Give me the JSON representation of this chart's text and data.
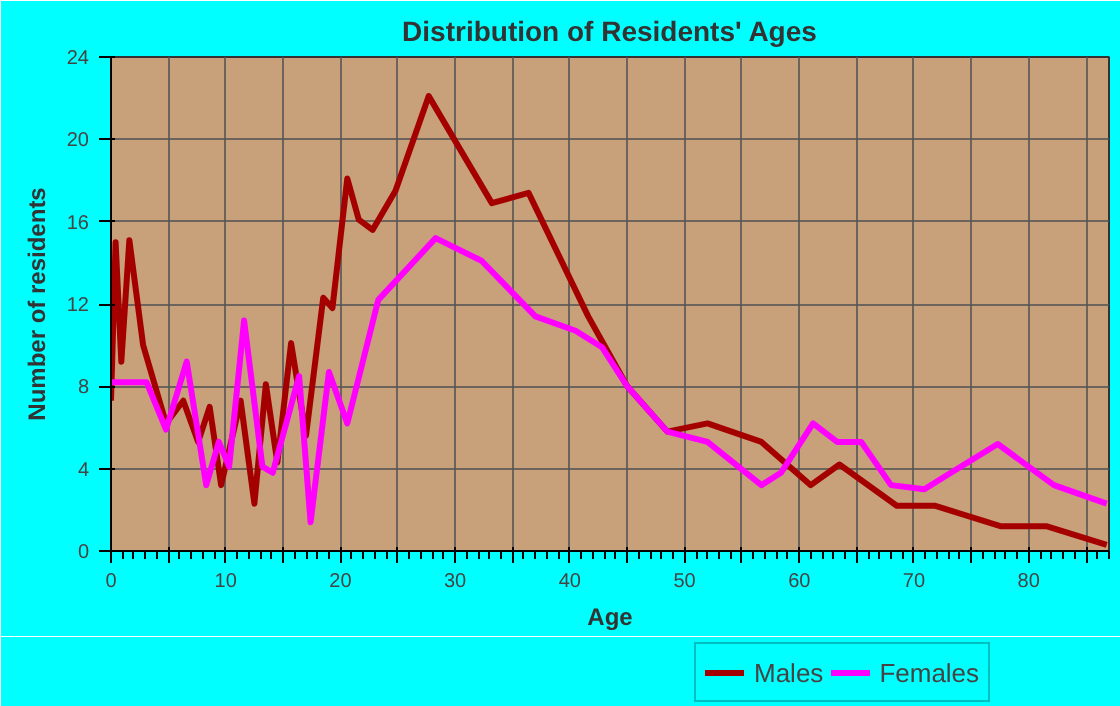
{
  "chart_data": {
    "type": "line",
    "title": "Distribution of Residents' Ages",
    "xlabel": "Age",
    "ylabel": "Number of residents",
    "xlim": [
      0,
      87
    ],
    "ylim": [
      0,
      24
    ],
    "xticks": [
      0,
      {
        "value": 5,
        "label": null
      },
      10,
      {
        "value": 15,
        "label": null
      },
      20,
      {
        "value": 25,
        "label": null
      },
      30,
      {
        "value": 35,
        "label": null
      },
      40,
      {
        "value": 45,
        "label": null
      },
      50,
      {
        "value": 55,
        "label": null
      },
      60,
      {
        "value": 65,
        "label": null
      },
      70,
      {
        "value": 75,
        "label": null
      },
      80,
      {
        "value": 85,
        "label": null
      }
    ],
    "yticks": [
      0,
      4,
      8,
      12,
      16,
      20,
      24
    ],
    "grid": true,
    "legend": "bottom right",
    "line_style": "solid",
    "marker": "none",
    "series": [
      {
        "name": "Males",
        "color": "#a50000",
        "x": [
          0,
          0.4,
          0.9,
          1.6,
          2.8,
          4.8,
          6.3,
          7.6,
          8.6,
          9.6,
          11.3,
          12.5,
          13.5,
          14.5,
          15.7,
          17,
          18.5,
          19.3,
          20.6,
          21.6,
          22.8,
          24.8,
          27.7,
          33.2,
          36.4,
          41.6,
          45,
          48.5,
          52,
          56.7,
          61,
          63.5,
          68.5,
          71.8,
          77.6,
          81.6,
          86.8
        ],
        "values": [
          7.3,
          15,
          9.2,
          15.1,
          10,
          6.2,
          7.3,
          5.3,
          7,
          3.2,
          7.3,
          2.3,
          8.1,
          4.3,
          10.1,
          5.6,
          12.3,
          11.8,
          18.1,
          16.1,
          15.6,
          17.5,
          22.1,
          16.9,
          17.4,
          11.4,
          8,
          5.8,
          6.2,
          5.3,
          3.2,
          4.2,
          2.2,
          2.2,
          1.2,
          1.2,
          0.3
        ]
      },
      {
        "name": "Females",
        "color": "#ff00ff",
        "x": [
          0,
          3.1,
          4.8,
          6.6,
          8.3,
          9.4,
          10.3,
          11.6,
          13.2,
          14.1,
          16.4,
          17.4,
          19,
          20.6,
          23.3,
          28.3,
          32.3,
          37,
          40.5,
          42.8,
          45,
          48.5,
          52,
          56.7,
          58.4,
          61.2,
          63.3,
          65.4,
          68,
          70.9,
          73.5,
          77.3,
          82.2,
          86.8
        ],
        "values": [
          8.2,
          8.2,
          5.9,
          9.2,
          3.2,
          5.3,
          4.1,
          11.2,
          4.1,
          3.8,
          8.5,
          1.4,
          8.7,
          6.2,
          12.2,
          15.2,
          14.1,
          11.4,
          10.7,
          9.9,
          8,
          5.8,
          5.3,
          3.2,
          3.8,
          6.2,
          5.3,
          5.3,
          3.2,
          3,
          3.9,
          5.2,
          3.2,
          2.3
        ]
      }
    ]
  }
}
